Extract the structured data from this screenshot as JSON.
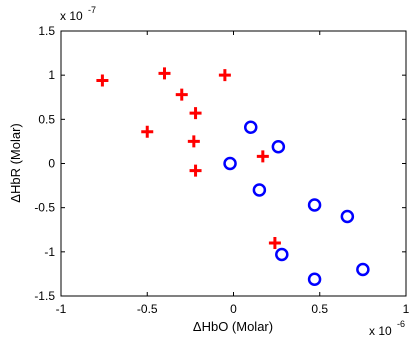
{
  "chart_data": {
    "type": "scatter",
    "title": "",
    "xlabel": "ΔHbO (Molar)",
    "ylabel": "ΔHbR (Molar)",
    "x_scale_label": "x 10",
    "x_scale_exp": "-6",
    "y_scale_label": "x 10",
    "y_scale_exp": "-7",
    "xlim": [
      -1,
      1
    ],
    "ylim": [
      -1.5,
      1.5
    ],
    "x_unit_multiplier": 1e-06,
    "y_unit_multiplier": 1e-07,
    "xticks": [
      -1,
      -0.5,
      0,
      0.5,
      1
    ],
    "xtick_labels": [
      "-1",
      "-0.5",
      "0",
      "0.5",
      "1"
    ],
    "yticks": [
      -1.5,
      -1,
      -0.5,
      0,
      0.5,
      1,
      1.5
    ],
    "ytick_labels": [
      "-1.5",
      "-1",
      "-0.5",
      "0",
      "0.5",
      "1",
      "1.5"
    ],
    "grid": false,
    "legend": "none",
    "series": [
      {
        "marker": "plus",
        "color": "#ff0000",
        "x": [
          -0.76,
          -0.4,
          -0.05,
          -0.3,
          -0.22,
          -0.5,
          -0.23,
          -0.22,
          0.17,
          0.24
        ],
        "y": [
          0.94,
          1.02,
          1.0,
          0.78,
          0.57,
          0.36,
          0.25,
          -0.08,
          0.08,
          -0.9
        ]
      },
      {
        "marker": "circle",
        "color": "#0000ff",
        "x": [
          0.1,
          0.26,
          -0.02,
          0.15,
          0.47,
          0.66,
          0.28,
          0.75,
          0.47
        ],
        "y": [
          0.41,
          0.19,
          0.0,
          -0.3,
          -0.47,
          -0.6,
          -1.03,
          -1.2,
          -1.31
        ]
      }
    ]
  }
}
